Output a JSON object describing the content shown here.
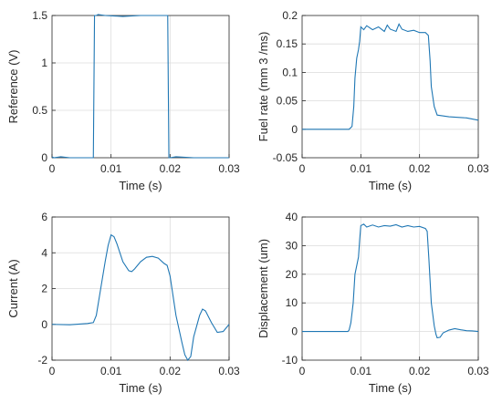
{
  "colors": {
    "line": "#1f77b4",
    "axis": "#262626",
    "grid": "#dcdcdc",
    "background": "#ffffff"
  },
  "chart_data": [
    {
      "type": "line",
      "xlabel": "Time (s)",
      "ylabel": "Reference (V)",
      "xlim": [
        0,
        0.03
      ],
      "ylim": [
        0,
        1.5
      ],
      "xticks": [
        "0",
        "0.01",
        "0.02",
        "0.03"
      ],
      "yticks": [
        "0",
        "0.5",
        "1",
        "1.5"
      ],
      "grid": true,
      "series": [
        {
          "x": [
            0,
            0.0003,
            0.0015,
            0.003,
            0.005,
            0.007,
            0.0072,
            0.0075,
            0.0078,
            0.009,
            0.012,
            0.015,
            0.018,
            0.0196,
            0.0198,
            0.02,
            0.021,
            0.024,
            0.027,
            0.03
          ],
          "y": [
            0.01,
            0.0,
            0.01,
            0.0,
            0.0,
            0.0,
            1.5,
            1.5,
            1.51,
            1.5,
            1.49,
            1.5,
            1.5,
            1.5,
            0.0,
            0.0,
            0.01,
            0.0,
            0.0,
            0.0
          ]
        }
      ]
    },
    {
      "type": "line",
      "xlabel": "Time (s)",
      "ylabel": "Fuel rate (mm   3 /ms)",
      "xlim": [
        0,
        0.03
      ],
      "ylim": [
        -0.05,
        0.2
      ],
      "xticks": [
        "0",
        "0.01",
        "0.02",
        "0.03"
      ],
      "yticks": [
        "-0.05",
        "0",
        "0.05",
        "0.1",
        "0.15",
        "0.2"
      ],
      "grid": true,
      "series": [
        {
          "x": [
            0,
            0.004,
            0.008,
            0.0085,
            0.0088,
            0.009,
            0.0093,
            0.0096,
            0.0098,
            0.01,
            0.0105,
            0.011,
            0.012,
            0.013,
            0.014,
            0.0145,
            0.015,
            0.016,
            0.0165,
            0.017,
            0.018,
            0.019,
            0.02,
            0.021,
            0.0215,
            0.0218,
            0.022,
            0.0225,
            0.023,
            0.025,
            0.028,
            0.03
          ],
          "y": [
            0.0,
            0.0,
            0.0,
            0.005,
            0.04,
            0.09,
            0.125,
            0.14,
            0.155,
            0.18,
            0.175,
            0.182,
            0.175,
            0.18,
            0.172,
            0.183,
            0.176,
            0.172,
            0.185,
            0.176,
            0.172,
            0.174,
            0.17,
            0.17,
            0.165,
            0.12,
            0.075,
            0.04,
            0.025,
            0.022,
            0.02,
            0.016
          ]
        }
      ]
    },
    {
      "type": "line",
      "xlabel": "Time (s)",
      "ylabel": "Current (A)",
      "xlim": [
        0,
        0.03
      ],
      "ylim": [
        -2,
        6
      ],
      "xticks": [
        "0",
        "0.01",
        "0.02",
        "0.03"
      ],
      "yticks": [
        "-2",
        "0",
        "2",
        "4",
        "6"
      ],
      "grid": true,
      "series": [
        {
          "x": [
            0,
            0.003,
            0.006,
            0.007,
            0.0075,
            0.008,
            0.009,
            0.0095,
            0.01,
            0.0105,
            0.011,
            0.012,
            0.013,
            0.0135,
            0.014,
            0.015,
            0.016,
            0.017,
            0.018,
            0.019,
            0.0195,
            0.02,
            0.021,
            0.022,
            0.0225,
            0.023,
            0.0235,
            0.024,
            0.025,
            0.0255,
            0.026,
            0.027,
            0.028,
            0.029,
            0.03
          ],
          "y": [
            0.0,
            -0.02,
            0.05,
            0.1,
            0.5,
            1.5,
            3.5,
            4.4,
            5.0,
            4.9,
            4.5,
            3.5,
            3.0,
            2.95,
            3.1,
            3.5,
            3.75,
            3.8,
            3.7,
            3.4,
            3.3,
            2.7,
            0.5,
            -1.0,
            -1.7,
            -2.0,
            -1.8,
            -0.7,
            0.5,
            0.85,
            0.75,
            0.1,
            -0.45,
            -0.4,
            0.0
          ]
        }
      ]
    },
    {
      "type": "line",
      "xlabel": "Time (s)",
      "ylabel": "Displacement (um)",
      "xlim": [
        0,
        0.03
      ],
      "ylim": [
        -10,
        40
      ],
      "xticks": [
        "0",
        "0.01",
        "0.02",
        "0.03"
      ],
      "yticks": [
        "-10",
        "0",
        "10",
        "20",
        "30",
        "40"
      ],
      "grid": true,
      "series": [
        {
          "x": [
            0,
            0.004,
            0.0078,
            0.008,
            0.0083,
            0.0087,
            0.009,
            0.0093,
            0.0096,
            0.0098,
            0.01,
            0.0105,
            0.011,
            0.012,
            0.013,
            0.014,
            0.015,
            0.016,
            0.017,
            0.018,
            0.019,
            0.02,
            0.021,
            0.0213,
            0.0216,
            0.022,
            0.0225,
            0.0228,
            0.023,
            0.0235,
            0.024,
            0.025,
            0.026,
            0.027,
            0.028,
            0.029,
            0.03
          ],
          "y": [
            0,
            0,
            0,
            0.5,
            3,
            10,
            20,
            23,
            26,
            32,
            37,
            37.5,
            36.5,
            37.2,
            36.5,
            37,
            36.8,
            37.3,
            36.5,
            37,
            36.5,
            36.7,
            36,
            35,
            25,
            10,
            2,
            -1,
            -2.2,
            -2,
            -0.5,
            0.5,
            1,
            0.6,
            0.3,
            0.2,
            0.0
          ]
        }
      ]
    }
  ]
}
